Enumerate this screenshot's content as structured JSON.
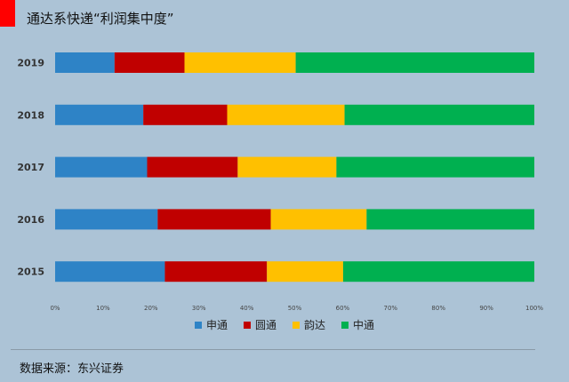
{
  "header": {
    "title": "通达系快递“利润集中度”"
  },
  "chart_data": {
    "type": "bar",
    "orientation": "horizontal",
    "stacked": "percent",
    "categories": [
      "2019",
      "2018",
      "2017",
      "2016",
      "2015"
    ],
    "series": [
      {
        "name": "申通",
        "color": "#2e83c6",
        "values": [
          12.4,
          18.4,
          19.2,
          21.4,
          22.9
        ]
      },
      {
        "name": "圆通",
        "color": "#c00000",
        "values": [
          14.6,
          17.5,
          18.9,
          23.6,
          21.3
        ]
      },
      {
        "name": "韵达",
        "color": "#ffc000",
        "values": [
          23.2,
          24.5,
          20.6,
          20.0,
          15.9
        ]
      },
      {
        "name": "中通",
        "color": "#00b050",
        "values": [
          49.8,
          39.6,
          41.3,
          35.0,
          39.9
        ]
      }
    ],
    "x_ticks": [
      "0%",
      "10%",
      "20%",
      "30%",
      "40%",
      "50%",
      "60%",
      "70%",
      "80%",
      "90%",
      "100%"
    ],
    "xlim": [
      0,
      100
    ],
    "legend_position": "bottom",
    "grid": false
  },
  "footer": {
    "source": "数据来源：东兴证券"
  }
}
